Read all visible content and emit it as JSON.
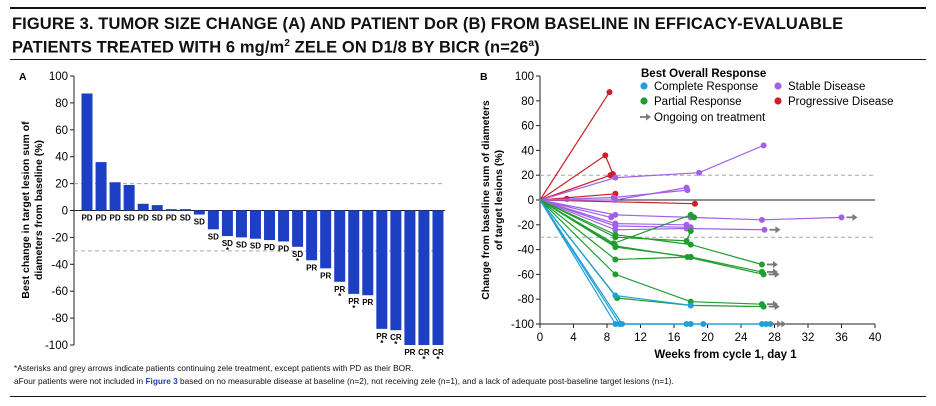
{
  "title": {
    "line1": "FIGURE 3. TUMOR SIZE CHANGE (A) AND PATIENT DoR (B) FROM BASELINE IN EFFICACY-EVALUABLE",
    "line2_pre": "PATIENTS TREATED WITH 6 mg/m",
    "line2_sup": "2",
    "line2_mid": " ZELE ON D1/8 BY BICR (n=26",
    "line2_sup2": "a",
    "line2_post": ")"
  },
  "footnotes": {
    "asterisk": "*Asterisks and grey arrows indicate patients continuing zele treatment, except patients with PD as their BOR.",
    "a_pre": "aFour patients were not included in ",
    "a_link": "Figure 3",
    "a_post": " based on no measurable disease at baseline (n=2), not receiving zele (n=1), and a lack of adequate post-baseline target lesions (n=1)."
  },
  "colors": {
    "bar": "#1d3fc4",
    "complete": "#21a0d8",
    "stable": "#a260e8",
    "partial": "#1f9d2e",
    "progressive": "#cc1f2a",
    "arrow": "#7a7a7a",
    "dashed": "#a7a7a7"
  },
  "chart_data": [
    {
      "type": "bar",
      "panel_label": "A",
      "ylabel_line1": "Best change in target lesion sum of",
      "ylabel_line2": "diameters from baseline (%)",
      "ylim": [
        -100,
        100
      ],
      "yticks": [
        100,
        80,
        60,
        40,
        20,
        0,
        -20,
        -40,
        -60,
        -80,
        -100
      ],
      "reference_lines": [
        20,
        -30
      ],
      "values": [
        87,
        36,
        21,
        19,
        5,
        4,
        1,
        1,
        -3,
        -14,
        -19,
        -20,
        -21,
        -22,
        -23,
        -27,
        -37,
        -43,
        -53,
        -62,
        -63,
        -88,
        -89,
        -100,
        -100,
        -100
      ],
      "labels": [
        "PD",
        "PD",
        "PD",
        "SD",
        "PD",
        "SD",
        "PD",
        "SD",
        "SD",
        "SD",
        "SD",
        "SD",
        "SD",
        "PD",
        "PD",
        "SD",
        "PR",
        "PR",
        "PR",
        "PR",
        "PR",
        "PR",
        "CR",
        "PR",
        "CR",
        "CR"
      ],
      "ongoing": [
        false,
        false,
        false,
        false,
        false,
        false,
        false,
        false,
        false,
        false,
        true,
        false,
        false,
        false,
        false,
        true,
        false,
        false,
        true,
        true,
        false,
        true,
        true,
        false,
        true,
        true
      ]
    },
    {
      "type": "line",
      "panel_label": "B",
      "xlabel": "Weeks from cycle 1, day 1",
      "ylabel_line1": "Change from baseline sum of diameters",
      "ylabel_line2": "of target lesions (%)",
      "xlim": [
        0,
        40
      ],
      "ylim": [
        -100,
        100
      ],
      "xticks": [
        0,
        4,
        8,
        12,
        16,
        20,
        24,
        28,
        32,
        36,
        40
      ],
      "yticks": [
        100,
        80,
        60,
        40,
        20,
        0,
        -20,
        -40,
        -60,
        -80,
        -100
      ],
      "reference_lines": [
        20,
        -30
      ],
      "legend": {
        "title": "Best Overall Response",
        "complete": "Complete Response",
        "stable": "Stable Disease",
        "partial": "Partial Response",
        "progressive": "Progressive Disease",
        "ongoing": "Ongoing on treatment"
      },
      "series": [
        {
          "category": "progressive",
          "ongoing": false,
          "points": [
            [
              0,
              0
            ],
            [
              8.3,
              87
            ]
          ]
        },
        {
          "category": "progressive",
          "ongoing": false,
          "points": [
            [
              0,
              0
            ],
            [
              7.8,
              36
            ],
            [
              8.7,
              21
            ]
          ]
        },
        {
          "category": "progressive",
          "ongoing": false,
          "points": [
            [
              0,
              0
            ],
            [
              8.4,
              20
            ]
          ]
        },
        {
          "category": "progressive",
          "ongoing": false,
          "points": [
            [
              0,
              0
            ],
            [
              9,
              5
            ]
          ]
        },
        {
          "category": "progressive",
          "ongoing": false,
          "points": [
            [
              0,
              0
            ],
            [
              3.2,
              1
            ]
          ]
        },
        {
          "category": "progressive",
          "ongoing": false,
          "points": [
            [
              0,
              0
            ],
            [
              18.5,
              -3
            ]
          ]
        },
        {
          "category": "stable",
          "ongoing": false,
          "points": [
            [
              0,
              0
            ],
            [
              9,
              18
            ],
            [
              19,
              22
            ],
            [
              26.7,
              44
            ]
          ]
        },
        {
          "category": "stable",
          "ongoing": false,
          "points": [
            [
              0,
              0
            ],
            [
              9,
              0
            ],
            [
              17.5,
              10
            ]
          ]
        },
        {
          "category": "stable",
          "ongoing": false,
          "points": [
            [
              0,
              0
            ],
            [
              8.8,
              2
            ],
            [
              17.6,
              8
            ]
          ]
        },
        {
          "category": "stable",
          "ongoing": false,
          "points": [
            [
              0,
              0
            ],
            [
              8.5,
              -14
            ]
          ]
        },
        {
          "category": "stable",
          "ongoing": true,
          "points": [
            [
              0,
              0
            ],
            [
              9,
              -12
            ],
            [
              18,
              -14
            ],
            [
              26.5,
              -16
            ],
            [
              36,
              -14
            ]
          ]
        },
        {
          "category": "stable",
          "ongoing": false,
          "points": [
            [
              0,
              0
            ],
            [
              9,
              -19
            ],
            [
              17.5,
              -20
            ]
          ]
        },
        {
          "category": "stable",
          "ongoing": false,
          "points": [
            [
              0,
              0
            ],
            [
              9,
              -21
            ],
            [
              18,
              -22
            ]
          ]
        },
        {
          "category": "stable",
          "ongoing": true,
          "points": [
            [
              0,
              0
            ],
            [
              9,
              -24
            ],
            [
              17.5,
              -23
            ],
            [
              26.8,
              -24
            ]
          ]
        },
        {
          "category": "partial",
          "ongoing": false,
          "points": [
            [
              0,
              0
            ],
            [
              8.8,
              -35
            ],
            [
              18,
              -12
            ],
            [
              18.4,
              -14
            ]
          ]
        },
        {
          "category": "partial",
          "ongoing": false,
          "points": [
            [
              0,
              0
            ],
            [
              9,
              -30
            ],
            [
              17.5,
              -33
            ],
            [
              18,
              -25
            ]
          ]
        },
        {
          "category": "partial",
          "ongoing": false,
          "points": [
            [
              0,
              0
            ],
            [
              9,
              -38
            ],
            [
              18,
              -46
            ]
          ]
        },
        {
          "category": "partial",
          "ongoing": true,
          "points": [
            [
              0,
              0
            ],
            [
              9,
              -28
            ],
            [
              18,
              -36
            ],
            [
              26.5,
              -52
            ]
          ]
        },
        {
          "category": "partial",
          "ongoing": true,
          "points": [
            [
              0,
              0
            ],
            [
              9,
              -48
            ],
            [
              18,
              -46
            ],
            [
              26.5,
              -58
            ]
          ]
        },
        {
          "category": "partial",
          "ongoing": true,
          "points": [
            [
              0,
              0
            ],
            [
              9,
              -37
            ],
            [
              17.6,
              -46
            ],
            [
              26.7,
              -60
            ]
          ]
        },
        {
          "category": "partial",
          "ongoing": true,
          "points": [
            [
              0,
              0
            ],
            [
              9,
              -60
            ],
            [
              18,
              -82
            ],
            [
              26.5,
              -84
            ]
          ]
        },
        {
          "category": "partial",
          "ongoing": true,
          "points": [
            [
              0,
              0
            ],
            [
              9.2,
              -79
            ],
            [
              18,
              -85
            ],
            [
              26.7,
              -86
            ]
          ]
        },
        {
          "category": "complete",
          "ongoing": false,
          "points": [
            [
              0,
              0
            ],
            [
              9,
              -77
            ],
            [
              18,
              -85
            ]
          ]
        },
        {
          "category": "complete",
          "ongoing": true,
          "points": [
            [
              0,
              0
            ],
            [
              9,
              -100
            ],
            [
              18,
              -100
            ],
            [
              26.5,
              -100
            ],
            [
              27.5,
              -100
            ]
          ]
        },
        {
          "category": "complete",
          "ongoing": true,
          "points": [
            [
              0,
              0
            ],
            [
              9.5,
              -100
            ],
            [
              19.5,
              -100
            ],
            [
              27,
              -100
            ]
          ]
        },
        {
          "category": "complete",
          "ongoing": false,
          "points": [
            [
              0,
              0
            ],
            [
              9.8,
              -100
            ],
            [
              17.5,
              -100
            ]
          ]
        }
      ]
    }
  ]
}
